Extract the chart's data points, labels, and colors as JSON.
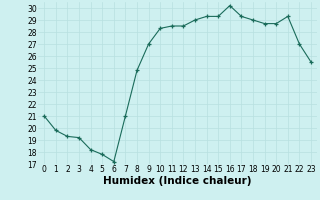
{
  "x": [
    0,
    1,
    2,
    3,
    4,
    5,
    6,
    7,
    8,
    9,
    10,
    11,
    12,
    13,
    14,
    15,
    16,
    17,
    18,
    19,
    20,
    21,
    22,
    23
  ],
  "y": [
    21,
    19.8,
    19.3,
    19.2,
    18.2,
    17.8,
    17.2,
    21.0,
    24.8,
    27.0,
    28.3,
    28.5,
    28.5,
    29.0,
    29.3,
    29.3,
    30.2,
    29.3,
    29.0,
    28.7,
    28.7,
    29.3,
    27.0,
    25.5
  ],
  "xlabel": "Humidex (Indice chaleur)",
  "xlim": [
    -0.5,
    23.5
  ],
  "ylim": [
    17,
    30.5
  ],
  "yticks": [
    17,
    18,
    19,
    20,
    21,
    22,
    23,
    24,
    25,
    26,
    27,
    28,
    29,
    30
  ],
  "xticks": [
    0,
    1,
    2,
    3,
    4,
    5,
    6,
    7,
    8,
    9,
    10,
    11,
    12,
    13,
    14,
    15,
    16,
    17,
    18,
    19,
    20,
    21,
    22,
    23
  ],
  "line_color": "#1a6b5a",
  "marker_color": "#1a6b5a",
  "bg_color": "#cef0f0",
  "grid_color": "#b8e0e0",
  "tick_label_fontsize": 5.5,
  "xlabel_fontsize": 7.5
}
